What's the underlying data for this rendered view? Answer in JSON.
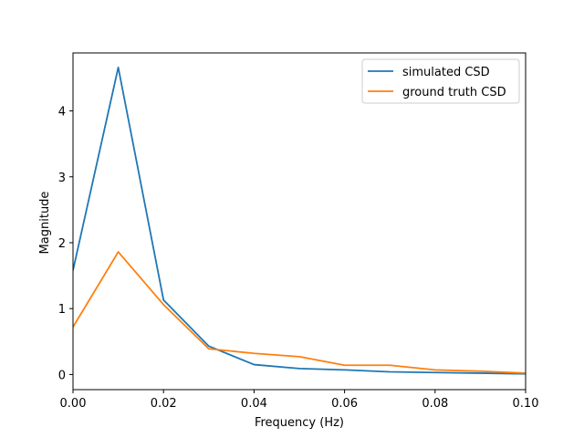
{
  "chart_data": {
    "type": "line",
    "title": "",
    "xlabel": "Frequency (Hz)",
    "ylabel": "Magnitude",
    "xlim": [
      0.0,
      0.1
    ],
    "ylim": [
      -0.23,
      4.88
    ],
    "x": [
      0.0,
      0.01,
      0.02,
      0.03,
      0.04,
      0.05,
      0.06,
      0.07,
      0.08,
      0.09,
      0.1
    ],
    "x_ticks": [
      0.0,
      0.02,
      0.04,
      0.06,
      0.08,
      0.1
    ],
    "x_tick_labels": [
      "0.00",
      "0.02",
      "0.04",
      "0.06",
      "0.08",
      "0.10"
    ],
    "y_ticks": [
      0,
      1,
      2,
      3,
      4
    ],
    "y_tick_labels": [
      "0",
      "1",
      "2",
      "3",
      "4"
    ],
    "grid": false,
    "legend_position": "top-right",
    "series": [
      {
        "name": "simulated CSD",
        "color": "#1f77b4",
        "values": [
          1.58,
          4.66,
          1.13,
          0.43,
          0.15,
          0.09,
          0.07,
          0.04,
          0.03,
          0.02,
          0.01
        ]
      },
      {
        "name": "ground truth CSD",
        "color": "#ff7f0e",
        "values": [
          0.72,
          1.86,
          1.06,
          0.39,
          0.32,
          0.27,
          0.14,
          0.14,
          0.07,
          0.05,
          0.02
        ]
      }
    ]
  }
}
